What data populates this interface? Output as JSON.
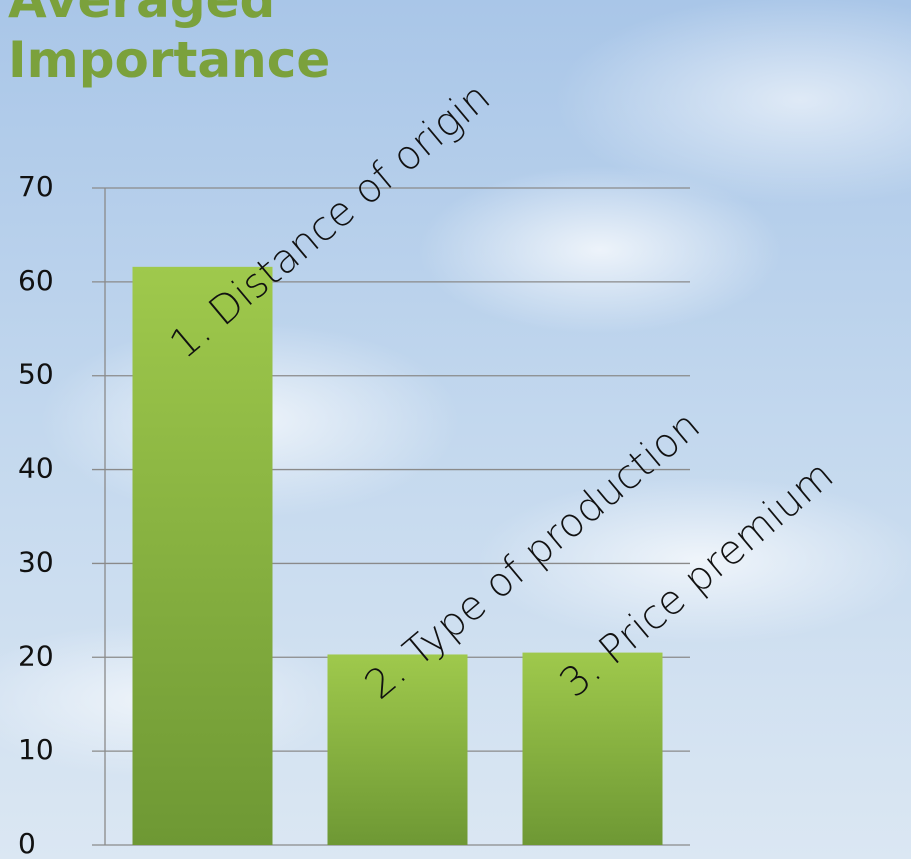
{
  "chart_data": {
    "type": "bar",
    "title": "Averaged Importance",
    "categories": [
      "1. Distance of origin",
      "2. Type of production",
      "3. Price premium"
    ],
    "values": [
      61.6,
      20.3,
      20.5
    ],
    "ylim": [
      0,
      70
    ],
    "yticks": [
      0,
      10,
      20,
      30,
      40,
      50,
      60,
      70
    ],
    "grid": true,
    "color": [
      "#9fc94c",
      "#6e9834"
    ]
  }
}
